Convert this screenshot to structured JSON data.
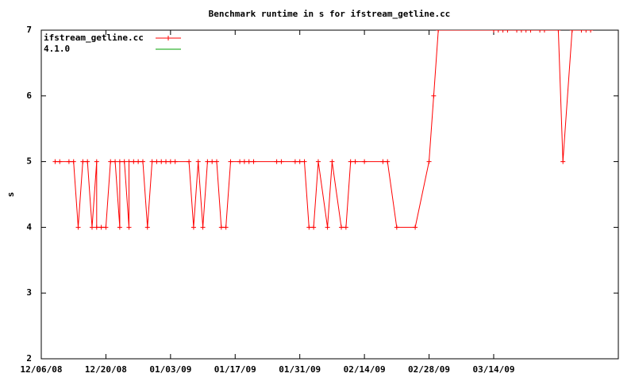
{
  "chart_data": {
    "type": "line",
    "title": "Benchmark runtime in s for ifstream_getline.cc",
    "y_label": "s",
    "x": [
      "12/09/08",
      "12/10/08",
      "12/12/08",
      "12/13/08",
      "12/14/08",
      "12/15/08",
      "12/16/08",
      "12/17/08",
      "12/18/08",
      "12/18/08",
      "12/19/08",
      "12/20/08",
      "12/21/08",
      "12/22/08",
      "12/23/08",
      "12/23/08",
      "12/24/08",
      "12/25/08",
      "12/25/08",
      "12/26/08",
      "12/27/08",
      "12/28/08",
      "12/29/08",
      "12/30/08",
      "12/31/08",
      "01/01/09",
      "01/02/09",
      "01/03/09",
      "01/04/09",
      "01/07/09",
      "01/08/09",
      "01/09/09",
      "01/10/09",
      "01/11/09",
      "01/12/09",
      "01/13/09",
      "01/14/09",
      "01/15/09",
      "01/16/09",
      "01/18/09",
      "01/19/09",
      "01/20/09",
      "01/21/09",
      "01/26/09",
      "01/27/09",
      "01/30/09",
      "01/31/09",
      "02/01/09",
      "02/02/09",
      "02/03/09",
      "02/04/09",
      "02/06/09",
      "02/07/09",
      "02/09/09",
      "02/10/09",
      "02/11/09",
      "02/12/09",
      "02/14/09",
      "02/18/09",
      "02/19/09",
      "02/21/09",
      "02/25/09",
      "02/28/09",
      "03/01/09",
      "03/02/09",
      "03/14/09",
      "03/15/09",
      "03/16/09",
      "03/17/09",
      "03/19/09",
      "03/20/09",
      "03/21/09",
      "03/22/09",
      "03/24/09",
      "03/25/09",
      "03/28/09",
      "03/29/09",
      "03/31/09",
      "04/02/09",
      "04/03/09",
      "04/04/09"
    ],
    "series": [
      {
        "name": "ifstream_getline.cc",
        "color": "#ff0000",
        "values": [
          5,
          5,
          5,
          5,
          4,
          5,
          5,
          4,
          5,
          4,
          4,
          4,
          5,
          5,
          4,
          5,
          5,
          4,
          5,
          5,
          5,
          5,
          4,
          5,
          5,
          5,
          5,
          5,
          5,
          5,
          4,
          5,
          4,
          5,
          5,
          5,
          4,
          4,
          5,
          5,
          5,
          5,
          5,
          5,
          5,
          5,
          5,
          5,
          4,
          4,
          5,
          4,
          5,
          4,
          4,
          5,
          5,
          5,
          5,
          5,
          4,
          4,
          5,
          6,
          7,
          7,
          7,
          7,
          7,
          7,
          7,
          7,
          7,
          7,
          7,
          7,
          5,
          7,
          7,
          7,
          7
        ]
      },
      {
        "name": "4.1.0",
        "color": "#00a000",
        "values": [
          null,
          null,
          null,
          null,
          null,
          null,
          null,
          null,
          null,
          null,
          null,
          null,
          null,
          null,
          null,
          null,
          null,
          null,
          null,
          null,
          null,
          null,
          null,
          null,
          null,
          null,
          null,
          null,
          null,
          null,
          null,
          null,
          null,
          null,
          null,
          null,
          null,
          null,
          null,
          null,
          null,
          null,
          null,
          null,
          null,
          null,
          null,
          null,
          null,
          null,
          null,
          null,
          null,
          null,
          null,
          null,
          null,
          null,
          null,
          null,
          null,
          null,
          null,
          null,
          null,
          null,
          null,
          null,
          null,
          null,
          null,
          null,
          null,
          null,
          null,
          null,
          null,
          null,
          null,
          null,
          null
        ]
      }
    ],
    "xlim": [
      "12/06/08",
      "04/10/09"
    ],
    "xticks": [
      "12/06/08",
      "12/20/08",
      "01/03/09",
      "01/17/09",
      "01/31/09",
      "02/14/09",
      "02/28/09",
      "03/14/09"
    ],
    "ylim": [
      2,
      7
    ],
    "yticks": [
      2,
      3,
      4,
      5,
      6,
      7
    ],
    "legend": "top-left",
    "grid": false
  }
}
